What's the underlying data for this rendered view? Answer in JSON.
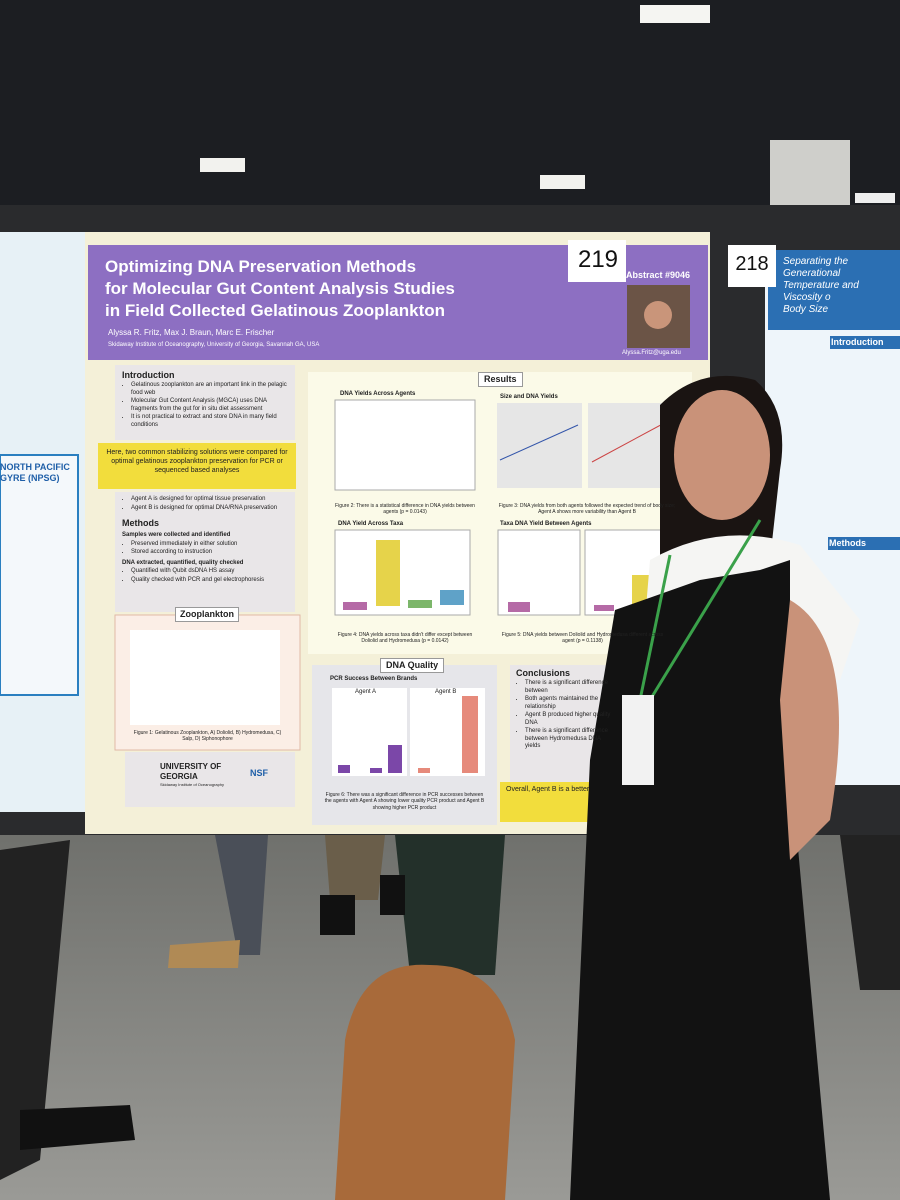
{
  "poster": {
    "number": "219",
    "title": [
      "Optimizing DNA Preservation Methods",
      "for Molecular Gut Content Analysis Studies",
      "in Field Collected Gelatinous Zooplankton"
    ],
    "abstract": "Abstract #9046",
    "authors": "Alyssa R. Fritz, Max J. Braun, Marc E. Frischer",
    "affiliation": "Skidaway Institute of Oceanography, University of Georgia, Savannah GA, USA",
    "email": "Alyssa.Fritz@uga.edu",
    "introduction": {
      "heading": "Introduction",
      "bullets": [
        "Gelatinous zooplankton are an important link in the pelagic food web",
        "Molecular Gut Content Analysis (MGCA) uses DNA fragments from the gut for in situ diet assessment",
        "It is not practical to extract and store DNA in many field conditions"
      ]
    },
    "highlight": "Here, two common stabilizing solutions were compared for optimal gelatinous zooplankton preservation for PCR or sequenced based analyses",
    "agents": [
      "Agent A is designed for optimal tissue preservation",
      "Agent B is designed for optimal DNA/RNA preservation"
    ],
    "methods": {
      "heading": "Methods",
      "steps": [
        {
          "title": "Samples were collected and identified",
          "bullets": [
            "Preserved immediately in either solution",
            "Stored according to instruction"
          ]
        },
        {
          "title": "DNA extracted, quantified, quality checked",
          "bullets": [
            "Quantified with Qubit dsDNA HS assay",
            "Quality checked with PCR and gel electrophoresis"
          ]
        }
      ]
    },
    "zooplankton": {
      "heading": "Zooplankton",
      "caption": "Figure 1: Gelatinous Zooplankton, A) Doliolid, B) Hydromedusa, C) Salp, D) Siphonophore"
    },
    "logos": {
      "university": "UNIVERSITY OF GEORGIA",
      "institute": "Skidaway Institute of Oceanography",
      "nsf": "NSF"
    },
    "results": {
      "heading": "Results",
      "fig2": {
        "title": "DNA Yields Across Agents",
        "caption": "Figure 2: There is a statistical difference in DNA yields between agents (p = 0.0143)"
      },
      "fig3": {
        "title": "Size and DNA Yields",
        "caption": "Figure 3: DNA yields from both agents followed the expected trend of body size; Agent A shows more variability than Agent B"
      },
      "fig4": {
        "title": "DNA Yield Across Taxa",
        "caption": "Figure 4: DNA yields across taxa didn't differ except between Doliolid and Hydromedusa (p = 0.0142)"
      },
      "fig5": {
        "title": "Taxa DNA Yield Between Agents",
        "caption": "Figure 5: DNA yields between Doliolid and Hydromedusa different across agent (p = 0.1138)"
      }
    },
    "quality": {
      "heading": "DNA Quality",
      "title": "PCR Success Between Brands",
      "panels": [
        "Agent A",
        "Agent B"
      ],
      "caption": "Figure 6: There was a significant difference in PCR successes between the agents with Agent A showing lower quality PCR product and Agent B showing higher PCR product"
    },
    "conclusions": {
      "heading": "Conclusions",
      "bullets": [
        "There is a significant difference between",
        "Both agents maintained the relationship",
        "Agent B produced higher quality DNA",
        "There is a significant difference between Hydromedusa DNA yields"
      ],
      "overall": "Overall, Agent B is a better"
    }
  },
  "neighbor_right": {
    "number": "218",
    "title": [
      "Separating the Generational",
      "Temperature and Viscosity o",
      "Body Size"
    ],
    "sections": [
      "Introduction",
      "Methods"
    ]
  },
  "neighbor_left": {
    "heading": "NORTH PACIFIC GYRE (NPSG)"
  }
}
